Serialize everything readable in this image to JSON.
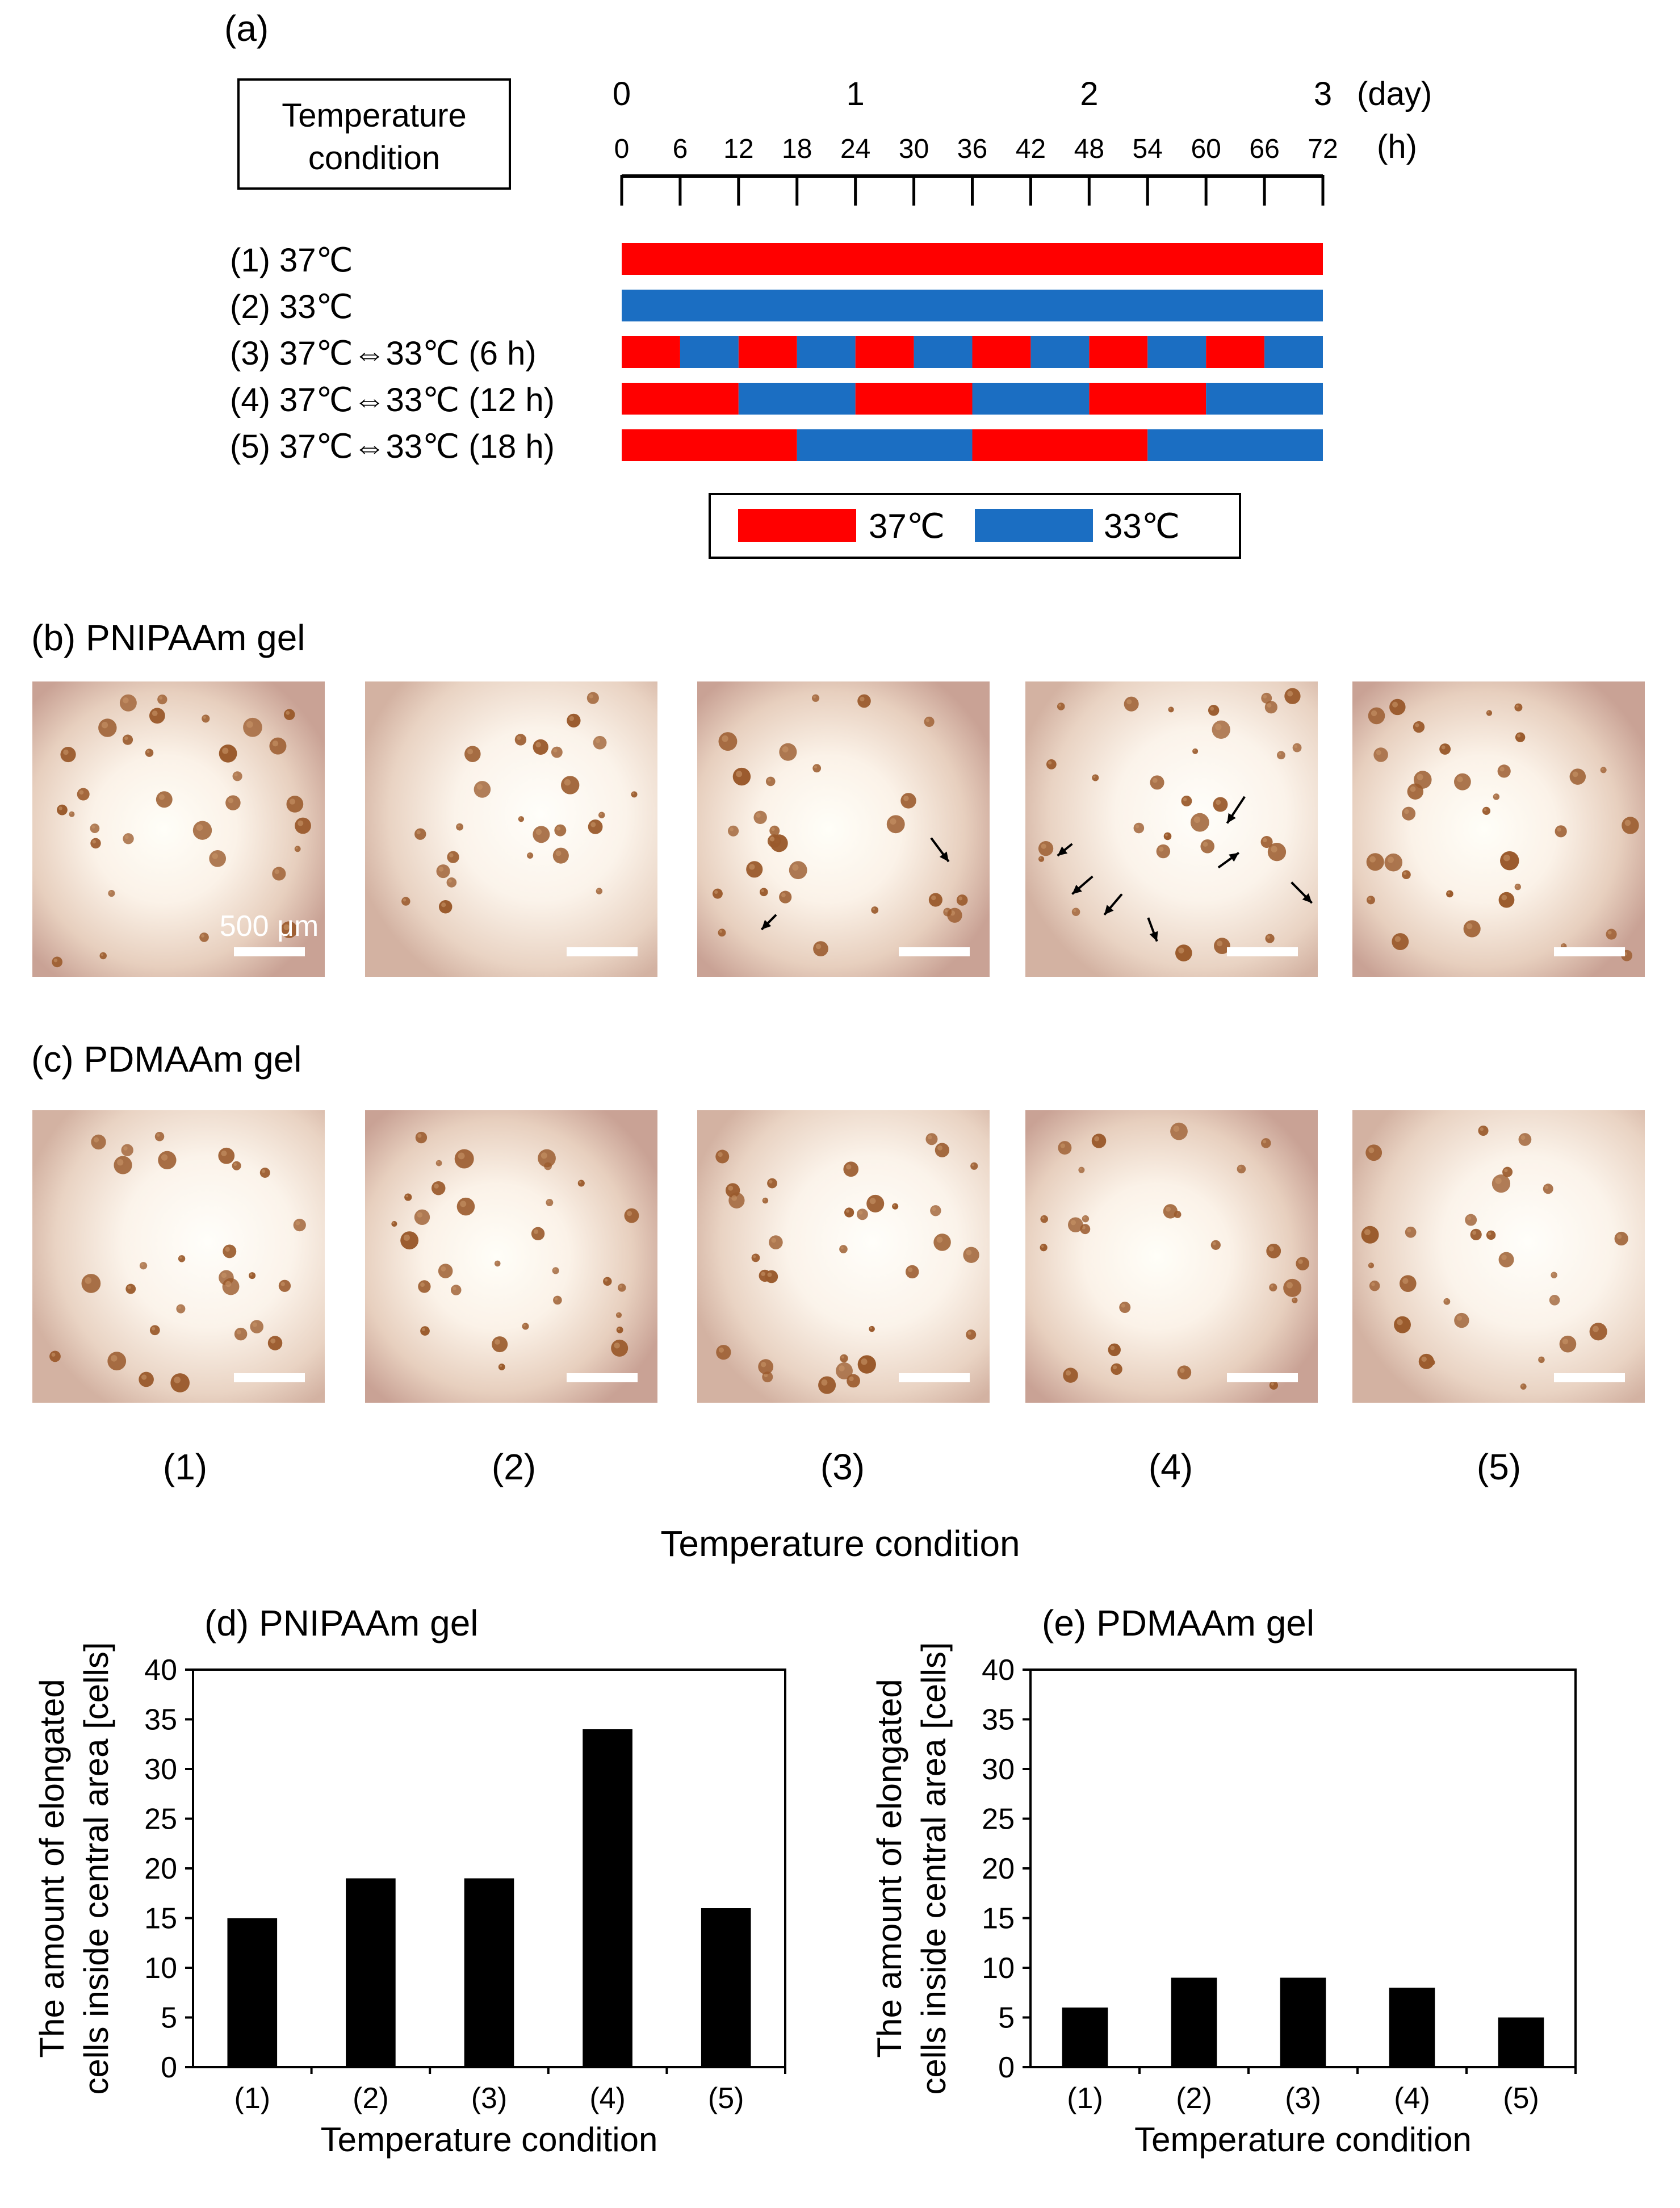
{
  "panel_a": {
    "label": "(a)",
    "legend_box_title_lines": [
      "Temperature",
      "condition"
    ],
    "day_ticks": [
      "0",
      "1",
      "2",
      "3"
    ],
    "day_unit": "(day)",
    "hour_ticks": [
      "0",
      "6",
      "12",
      "18",
      "24",
      "30",
      "36",
      "42",
      "48",
      "54",
      "60",
      "66",
      "72"
    ],
    "hour_unit": "(h)",
    "total_hours": 72,
    "conditions": [
      {
        "label": "(1) 37℃",
        "switch_hours": 0
      },
      {
        "label": "(2) 33℃",
        "switch_hours": 0
      },
      {
        "label": "(3) 37℃⇔33℃ (6 h)",
        "switch_hours": 6
      },
      {
        "label": "(4) 37℃⇔33℃ (12 h)",
        "switch_hours": 12
      },
      {
        "label": "(5) 37℃⇔33℃ (18 h)",
        "switch_hours": 18
      }
    ],
    "legend": [
      {
        "label": "37℃",
        "color": "#ff0000"
      },
      {
        "label": "33℃",
        "color": "#1b6ec2"
      }
    ]
  },
  "panel_b": {
    "title": "(b) PNIPAAm gel",
    "scale_bar_label": "500 μm"
  },
  "panel_c": {
    "title": "(c) PDMAAm gel"
  },
  "micrograph_condition_labels": [
    "(1)",
    "(2)",
    "(3)",
    "(4)",
    "(5)"
  ],
  "micrograph_axis_title": "Temperature condition",
  "chart_data": [
    {
      "type": "bar",
      "title": "(d) PNIPAAm gel",
      "categories": [
        "(1)",
        "(2)",
        "(3)",
        "(4)",
        "(5)"
      ],
      "values": [
        15,
        19,
        19,
        34,
        16
      ],
      "xlabel": "Temperature condition",
      "ylabel_lines": [
        "The amount of elongated",
        "cells inside central area [cells]"
      ],
      "ylim": [
        0,
        40
      ],
      "yticks": [
        0,
        5,
        10,
        15,
        20,
        25,
        30,
        35,
        40
      ],
      "grid": false,
      "bar_color": "#000000"
    },
    {
      "type": "bar",
      "title": "(e) PDMAAm gel",
      "categories": [
        "(1)",
        "(2)",
        "(3)",
        "(4)",
        "(5)"
      ],
      "values": [
        6,
        9,
        9,
        8,
        5
      ],
      "xlabel": "Temperature condition",
      "ylabel_lines": [
        "The amount of elongated",
        "cells inside central area [cells]"
      ],
      "ylim": [
        0,
        40
      ],
      "yticks": [
        0,
        5,
        10,
        15,
        20,
        25,
        30,
        35,
        40
      ],
      "grid": false,
      "bar_color": "#000000"
    }
  ]
}
